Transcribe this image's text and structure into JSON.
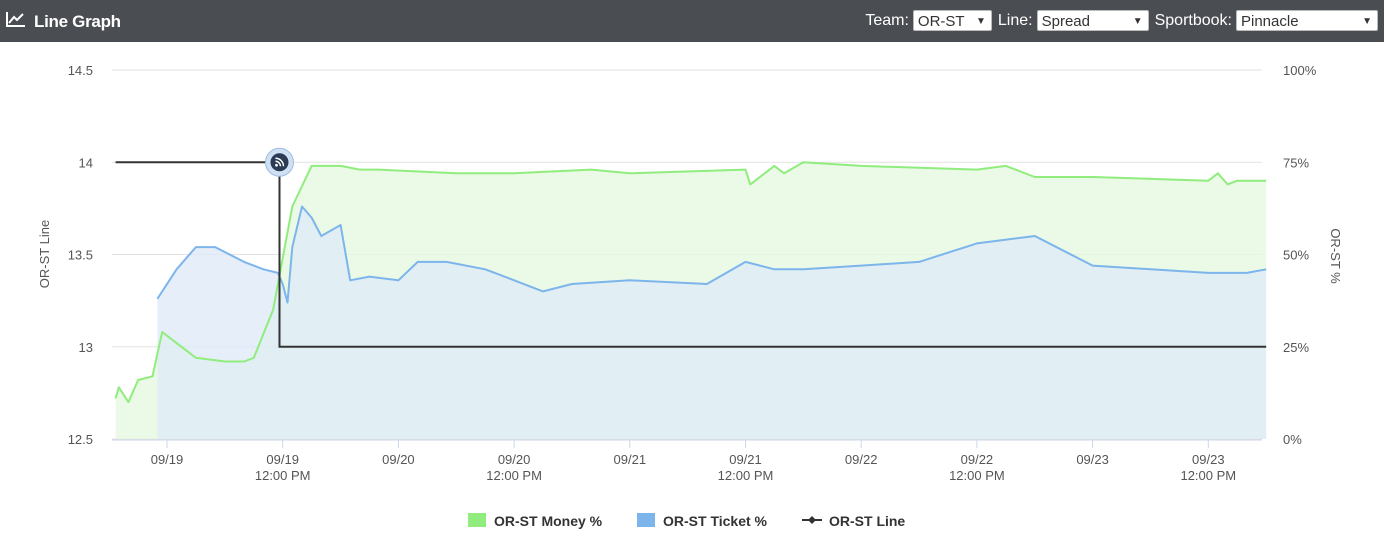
{
  "header": {
    "title": "Line Graph",
    "icon": "line-chart-icon",
    "team_label": "Team:",
    "team_value": "OR-ST",
    "line_label": "Line:",
    "line_value": "Spread",
    "sportsbook_label": "Sportbook:",
    "sportsbook_value": "Pinnacle"
  },
  "chart_data": {
    "type": "line",
    "ylabel_left": "OR-ST Line",
    "ylabel_right": "OR-ST %",
    "ylim_left": [
      12.5,
      14.5
    ],
    "ylim_right": [
      0,
      100
    ],
    "y_ticks_left": [
      "14.5",
      "14",
      "13.5",
      "13",
      "12.5"
    ],
    "y_ticks_right": [
      "100%",
      "75%",
      "50%",
      "25%",
      "0%"
    ],
    "x_ticks": [
      {
        "date": "09/19",
        "time": ""
      },
      {
        "date": "09/19",
        "time": "12:00 PM"
      },
      {
        "date": "09/20",
        "time": ""
      },
      {
        "date": "09/20",
        "time": "12:00 PM"
      },
      {
        "date": "09/21",
        "time": ""
      },
      {
        "date": "09/21",
        "time": "12:00 PM"
      },
      {
        "date": "09/22",
        "time": ""
      },
      {
        "date": "09/22",
        "time": "12:00 PM"
      },
      {
        "date": "09/23",
        "time": ""
      },
      {
        "date": "09/23",
        "time": "12:00 PM"
      }
    ],
    "grid": true,
    "legend_position": "bottom",
    "series": [
      {
        "name": "OR-ST Money %",
        "color": "#90ed7d",
        "fill": "#e4f8df",
        "axis": "right",
        "points": [
          [
            "09/18 18:40",
            11
          ],
          [
            "09/18 19:00",
            14
          ],
          [
            "09/18 20:00",
            10
          ],
          [
            "09/18 21:00",
            16
          ],
          [
            "09/18 22:30",
            17
          ],
          [
            "09/18 23:30",
            29
          ],
          [
            "09/19 01:00",
            26
          ],
          [
            "09/19 03:00",
            22
          ],
          [
            "09/19 06:00",
            21
          ],
          [
            "09/19 08:00",
            21
          ],
          [
            "09/19 09:00",
            22
          ],
          [
            "09/19 11:00",
            35
          ],
          [
            "09/19 13:00",
            63
          ],
          [
            "09/19 15:00",
            74
          ],
          [
            "09/19 18:00",
            74
          ],
          [
            "09/19 20:00",
            73
          ],
          [
            "09/19 22:00",
            73
          ],
          [
            "09/20 06:00",
            72
          ],
          [
            "09/20 12:00",
            72
          ],
          [
            "09/20 20:00",
            73
          ],
          [
            "09/21 00:00",
            72
          ],
          [
            "09/21 12:00",
            73
          ],
          [
            "09/21 12:30",
            69
          ],
          [
            "09/21 15:00",
            74
          ],
          [
            "09/21 16:00",
            72
          ],
          [
            "09/21 18:00",
            75
          ],
          [
            "09/22 00:00",
            74
          ],
          [
            "09/22 12:00",
            73
          ],
          [
            "09/22 15:00",
            74
          ],
          [
            "09/22 18:00",
            71
          ],
          [
            "09/23 00:00",
            71
          ],
          [
            "09/23 12:00",
            70
          ],
          [
            "09/23 13:00",
            72
          ],
          [
            "09/23 14:00",
            69
          ],
          [
            "09/23 15:00",
            70
          ],
          [
            "09/23 18:00",
            70
          ]
        ]
      },
      {
        "name": "OR-ST Ticket %",
        "color": "#7cb5ec",
        "fill": "#dde9f7",
        "axis": "right",
        "points": [
          [
            "09/18 23:00",
            38
          ],
          [
            "09/19 01:00",
            46
          ],
          [
            "09/19 03:00",
            52
          ],
          [
            "09/19 05:00",
            52
          ],
          [
            "09/19 08:00",
            48
          ],
          [
            "09/19 10:00",
            46
          ],
          [
            "09/19 11:30",
            45
          ],
          [
            "09/19 12:00",
            42
          ],
          [
            "09/19 12:30",
            37
          ],
          [
            "09/19 13:00",
            52
          ],
          [
            "09/19 14:00",
            63
          ],
          [
            "09/19 15:00",
            60
          ],
          [
            "09/19 16:00",
            55
          ],
          [
            "09/19 18:00",
            58
          ],
          [
            "09/19 19:00",
            43
          ],
          [
            "09/19 21:00",
            44
          ],
          [
            "09/20 00:00",
            43
          ],
          [
            "09/20 02:00",
            48
          ],
          [
            "09/20 05:00",
            48
          ],
          [
            "09/20 09:00",
            46
          ],
          [
            "09/20 12:00",
            43
          ],
          [
            "09/20 15:00",
            40
          ],
          [
            "09/20 18:00",
            42
          ],
          [
            "09/21 00:00",
            43
          ],
          [
            "09/21 08:00",
            42
          ],
          [
            "09/21 12:00",
            48
          ],
          [
            "09/21 15:00",
            46
          ],
          [
            "09/21 18:00",
            46
          ],
          [
            "09/22 00:00",
            47
          ],
          [
            "09/22 06:00",
            48
          ],
          [
            "09/22 12:00",
            53
          ],
          [
            "09/22 18:00",
            55
          ],
          [
            "09/22 21:00",
            51
          ],
          [
            "09/23 00:00",
            47
          ],
          [
            "09/23 12:00",
            45
          ],
          [
            "09/23 16:00",
            45
          ],
          [
            "09/23 18:00",
            46
          ]
        ]
      },
      {
        "name": "OR-ST Line",
        "color": "#333333",
        "axis": "left",
        "steps": [
          [
            "09/18 18:40",
            14
          ],
          [
            "09/19 11:40",
            14
          ],
          [
            "09/19 11:40",
            13
          ],
          [
            "09/23 18:00",
            13
          ]
        ]
      }
    ],
    "annotation": {
      "icon": "line-move-icon",
      "at": "09/19 11:40",
      "value": 14
    }
  }
}
